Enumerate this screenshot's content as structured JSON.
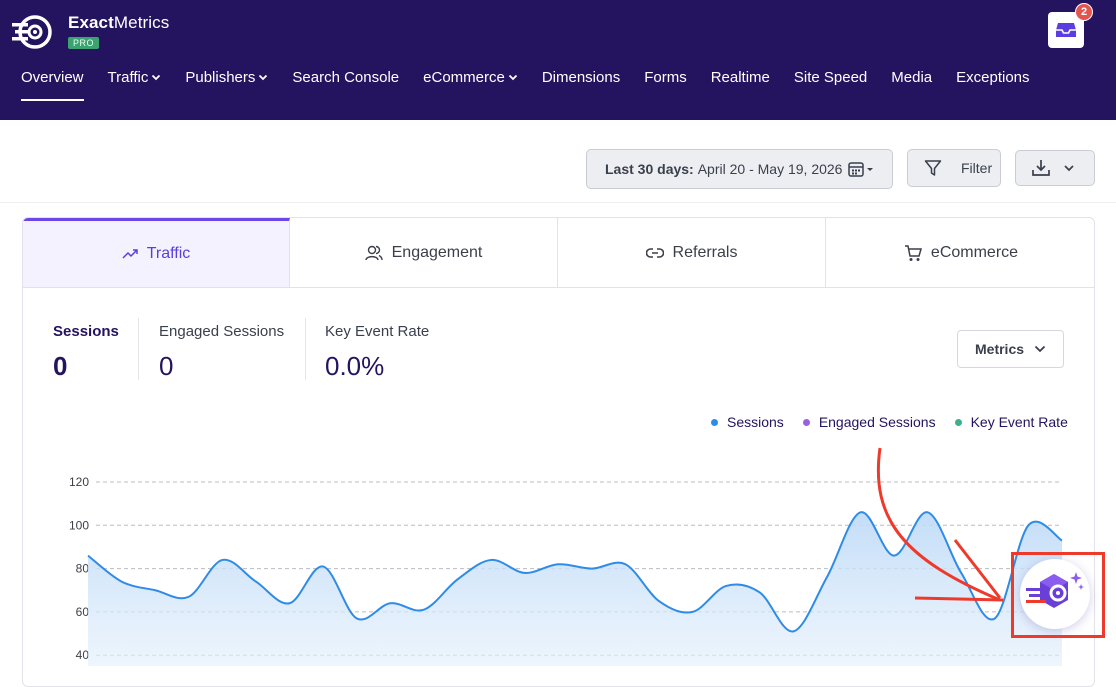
{
  "app": {
    "brand_name_bold": "Exact",
    "brand_name_rest": "Metrics",
    "badge": "PRO",
    "inbox_count": "2"
  },
  "nav": [
    {
      "label": "Overview",
      "active": true,
      "dropdown": false
    },
    {
      "label": "Traffic",
      "active": false,
      "dropdown": true
    },
    {
      "label": "Publishers",
      "active": false,
      "dropdown": true
    },
    {
      "label": "Search Console",
      "active": false,
      "dropdown": false
    },
    {
      "label": "eCommerce",
      "active": false,
      "dropdown": true
    },
    {
      "label": "Dimensions",
      "active": false,
      "dropdown": false
    },
    {
      "label": "Forms",
      "active": false,
      "dropdown": false
    },
    {
      "label": "Realtime",
      "active": false,
      "dropdown": false
    },
    {
      "label": "Site Speed",
      "active": false,
      "dropdown": false
    },
    {
      "label": "Media",
      "active": false,
      "dropdown": false
    },
    {
      "label": "Exceptions",
      "active": false,
      "dropdown": false
    }
  ],
  "toolbar": {
    "date_prefix": "Last 30 days:",
    "date_range": "April 20 - May 19, 2026",
    "filter_label": "Filter"
  },
  "tabs": [
    {
      "label": "Traffic",
      "icon": "trend-up-icon",
      "active": true
    },
    {
      "label": "Engagement",
      "icon": "users-icon",
      "active": false
    },
    {
      "label": "Referrals",
      "icon": "link-icon",
      "active": false
    },
    {
      "label": "eCommerce",
      "icon": "cart-icon",
      "active": false
    }
  ],
  "metrics": [
    {
      "label": "Sessions",
      "value": "0"
    },
    {
      "label": "Engaged Sessions",
      "value": "0"
    },
    {
      "label": "Key Event Rate",
      "value": "0.0%"
    }
  ],
  "metrics_button": "Metrics",
  "colors": {
    "header_bg": "#24135f",
    "accent": "#6a47e6",
    "sessions": "#2f8be6",
    "engaged": "#9b5fe0",
    "key_event": "#3fae8a",
    "callout": "#ee3a2a"
  },
  "chart_data": {
    "type": "area",
    "series": [
      {
        "name": "Sessions",
        "values": [
          86,
          74,
          70,
          67,
          84,
          74,
          64,
          81,
          57,
          64,
          61,
          75,
          84,
          78,
          82,
          80,
          82,
          65,
          60,
          72,
          69,
          51,
          76,
          106,
          86,
          106,
          78,
          57,
          100,
          93
        ]
      },
      {
        "name": "Engaged Sessions",
        "values": []
      },
      {
        "name": "Key Event Rate",
        "values": []
      }
    ],
    "y_ticks": [
      "120",
      "100",
      "80",
      "60",
      "40"
    ],
    "ylim": [
      30,
      130
    ],
    "grid": true,
    "legend_position": "top-right"
  }
}
